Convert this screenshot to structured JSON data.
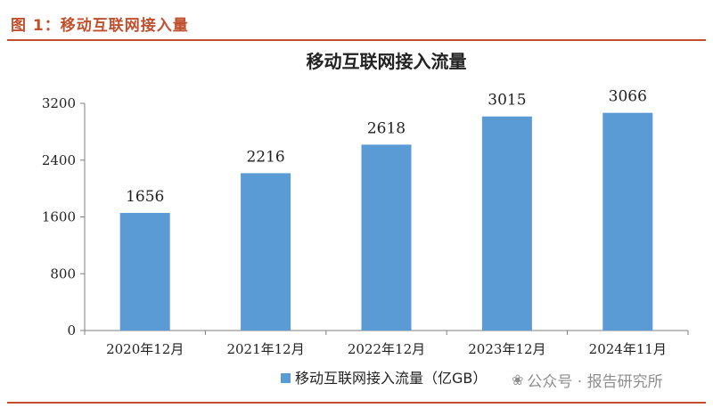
{
  "figure_caption": "图 1：移动互联网接入量",
  "watermark": {
    "icon": "wechat-icon",
    "text": "公众号 · 报告研究所"
  },
  "colors": {
    "accent": "#c0502e",
    "bar": "#5b9bd5",
    "axis": "#7f7f7f",
    "text": "#222222"
  },
  "chart_data": {
    "type": "bar",
    "title": "移动互联网接入流量",
    "categories": [
      "2020年12月",
      "2021年12月",
      "2022年12月",
      "2023年12月",
      "2024年11月"
    ],
    "series": [
      {
        "name": "移动互联网接入流量（亿GB）",
        "values": [
          1656,
          2216,
          2618,
          3015,
          3066
        ]
      }
    ],
    "ylim": [
      0,
      3200
    ],
    "yticks": [
      0,
      800,
      1600,
      2400,
      3200
    ],
    "xlabel": "",
    "ylabel": "",
    "grid": false,
    "legend": "bottom-center",
    "data_labels": true
  }
}
